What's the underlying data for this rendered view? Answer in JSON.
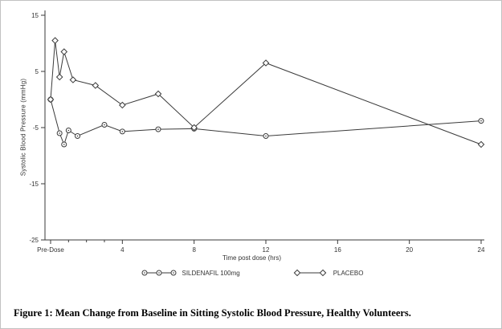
{
  "figure": {
    "caption": "Figure 1: Mean Change from Baseline in Sitting Systolic Blood Pressure, Healthy Volunteers."
  },
  "chart_data": {
    "type": "line",
    "title": "",
    "xlabel": "Time post dose (hrs)",
    "ylabel": "Systolic Blood Pressure (mmHg)",
    "xlim": [
      0,
      24
    ],
    "ylim": [
      -25,
      15
    ],
    "yticks": [
      15,
      5,
      -5,
      -15,
      -25
    ],
    "xticks": [
      {
        "value": 0,
        "label": "Pre-Dose"
      },
      {
        "value": 4,
        "label": "4"
      },
      {
        "value": 8,
        "label": "8"
      },
      {
        "value": 12,
        "label": "12"
      },
      {
        "value": 16,
        "label": "16"
      },
      {
        "value": 20,
        "label": "20"
      },
      {
        "value": 24,
        "label": "24"
      }
    ],
    "minor_xticks": [
      1,
      2,
      3
    ],
    "grid": false,
    "legend_position": "bottom",
    "line_color": "#3a3a3a",
    "series": [
      {
        "name": "SILDENAFIL 100mg",
        "marker": "circle",
        "x": [
          0,
          0.5,
          0.75,
          1,
          1.5,
          3,
          4,
          6,
          8,
          12,
          24
        ],
        "y": [
          0,
          -6,
          -8,
          -5.5,
          -6.5,
          -4.5,
          -5.7,
          -5.3,
          -5.2,
          -6.5,
          -3.8
        ]
      },
      {
        "name": "PLACEBO",
        "marker": "diamond",
        "x": [
          0,
          0.25,
          0.5,
          0.75,
          1.25,
          2.5,
          4,
          6,
          8,
          12,
          24
        ],
        "y": [
          0,
          10.5,
          4,
          8.5,
          3.5,
          2.5,
          -1,
          1,
          -5,
          6.5,
          -8
        ]
      }
    ]
  }
}
